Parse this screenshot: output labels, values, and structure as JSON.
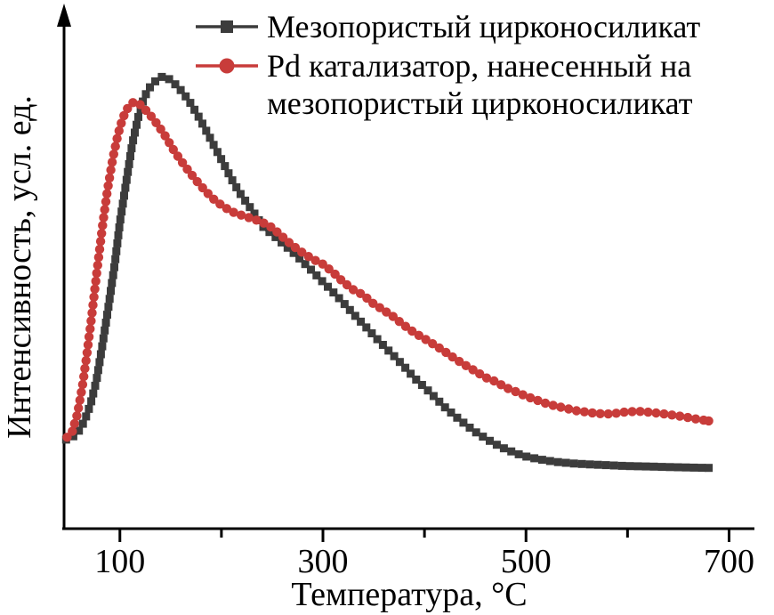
{
  "figure": {
    "background": "#ffffff",
    "axis_color": "#000000"
  },
  "chart_data": {
    "type": "line",
    "title": "",
    "xlabel": "Температура, °C",
    "ylabel": "Интенсивность, усл. ед.",
    "xlim": [
      45,
      725
    ],
    "ylim": [
      0,
      1.13
    ],
    "grid": false,
    "legend_position": "top",
    "x_ticks_major": [
      100,
      300,
      500,
      700
    ],
    "x_ticks_minor": [
      200,
      400,
      600
    ],
    "series": [
      {
        "name": "Мезопористый цирконосиликат",
        "color": "#3c3c3c",
        "marker": "square",
        "points": [
          [
            47,
            0.195
          ],
          [
            53,
            0.2
          ],
          [
            59,
            0.212
          ],
          [
            65,
            0.235
          ],
          [
            71,
            0.272
          ],
          [
            77,
            0.325
          ],
          [
            83,
            0.405
          ],
          [
            89,
            0.49
          ],
          [
            95,
            0.58
          ],
          [
            100,
            0.67
          ],
          [
            106,
            0.755
          ],
          [
            112,
            0.84
          ],
          [
            118,
            0.9
          ],
          [
            124,
            0.945
          ],
          [
            130,
            0.968
          ],
          [
            136,
            0.982
          ],
          [
            142,
            0.99
          ],
          [
            148,
            0.985
          ],
          [
            155,
            0.972
          ],
          [
            162,
            0.955
          ],
          [
            170,
            0.93
          ],
          [
            178,
            0.9
          ],
          [
            186,
            0.867
          ],
          [
            194,
            0.833
          ],
          [
            202,
            0.8
          ],
          [
            210,
            0.765
          ],
          [
            218,
            0.735
          ],
          [
            226,
            0.71
          ],
          [
            234,
            0.685
          ],
          [
            242,
            0.658
          ],
          [
            250,
            0.645
          ],
          [
            260,
            0.625
          ],
          [
            270,
            0.606
          ],
          [
            280,
            0.585
          ],
          [
            290,
            0.563
          ],
          [
            300,
            0.54
          ],
          [
            310,
            0.518
          ],
          [
            320,
            0.495
          ],
          [
            330,
            0.47
          ],
          [
            340,
            0.447
          ],
          [
            350,
            0.423
          ],
          [
            360,
            0.4
          ],
          [
            370,
            0.378
          ],
          [
            380,
            0.355
          ],
          [
            390,
            0.33
          ],
          [
            400,
            0.31
          ],
          [
            410,
            0.288
          ],
          [
            420,
            0.266
          ],
          [
            430,
            0.247
          ],
          [
            440,
            0.229
          ],
          [
            450,
            0.212
          ],
          [
            460,
            0.198
          ],
          [
            470,
            0.185
          ],
          [
            480,
            0.174
          ],
          [
            490,
            0.165
          ],
          [
            500,
            0.158
          ],
          [
            515,
            0.151
          ],
          [
            530,
            0.146
          ],
          [
            545,
            0.143
          ],
          [
            560,
            0.141
          ],
          [
            580,
            0.139
          ],
          [
            600,
            0.137
          ],
          [
            620,
            0.136
          ],
          [
            640,
            0.135
          ],
          [
            660,
            0.134
          ],
          [
            680,
            0.133
          ]
        ]
      },
      {
        "name": "Pd катализатор, нанесенный на мезопористый цирконосиликат",
        "color": "#c83c3a",
        "marker": "circle",
        "points": [
          [
            48,
            0.2
          ],
          [
            53,
            0.212
          ],
          [
            58,
            0.25
          ],
          [
            63,
            0.31
          ],
          [
            68,
            0.39
          ],
          [
            73,
            0.48
          ],
          [
            78,
            0.575
          ],
          [
            83,
            0.665
          ],
          [
            88,
            0.745
          ],
          [
            93,
            0.81
          ],
          [
            98,
            0.862
          ],
          [
            103,
            0.9
          ],
          [
            108,
            0.922
          ],
          [
            113,
            0.933
          ],
          [
            118,
            0.932
          ],
          [
            124,
            0.92
          ],
          [
            130,
            0.905
          ],
          [
            137,
            0.885
          ],
          [
            144,
            0.862
          ],
          [
            152,
            0.832
          ],
          [
            160,
            0.806
          ],
          [
            168,
            0.782
          ],
          [
            176,
            0.76
          ],
          [
            184,
            0.74
          ],
          [
            192,
            0.722
          ],
          [
            200,
            0.708
          ],
          [
            210,
            0.694
          ],
          [
            220,
            0.686
          ],
          [
            230,
            0.679
          ],
          [
            240,
            0.671
          ],
          [
            250,
            0.659
          ],
          [
            260,
            0.639
          ],
          [
            270,
            0.62
          ],
          [
            280,
            0.604
          ],
          [
            290,
            0.59
          ],
          [
            300,
            0.579
          ],
          [
            310,
            0.561
          ],
          [
            320,
            0.54
          ],
          [
            330,
            0.523
          ],
          [
            340,
            0.511
          ],
          [
            350,
            0.492
          ],
          [
            360,
            0.478
          ],
          [
            370,
            0.463
          ],
          [
            380,
            0.445
          ],
          [
            390,
            0.429
          ],
          [
            400,
            0.416
          ],
          [
            410,
            0.402
          ],
          [
            420,
            0.388
          ],
          [
            430,
            0.372
          ],
          [
            440,
            0.358
          ],
          [
            450,
            0.345
          ],
          [
            460,
            0.331
          ],
          [
            470,
            0.322
          ],
          [
            480,
            0.309
          ],
          [
            490,
            0.3
          ],
          [
            500,
            0.29
          ],
          [
            510,
            0.282
          ],
          [
            520,
            0.274
          ],
          [
            530,
            0.268
          ],
          [
            540,
            0.263
          ],
          [
            550,
            0.258
          ],
          [
            560,
            0.255
          ],
          [
            570,
            0.252
          ],
          [
            580,
            0.251
          ],
          [
            590,
            0.253
          ],
          [
            600,
            0.256
          ],
          [
            610,
            0.257
          ],
          [
            620,
            0.255
          ],
          [
            630,
            0.253
          ],
          [
            640,
            0.25
          ],
          [
            650,
            0.247
          ],
          [
            660,
            0.243
          ],
          [
            670,
            0.239
          ],
          [
            680,
            0.236
          ]
        ]
      }
    ]
  },
  "legend": {
    "items": [
      {
        "label_lines": [
          "Мезопористый цирконосиликат"
        ]
      },
      {
        "label_lines": [
          "Pd катализатор, нанесенный на",
          "мезопористый цирконосиликат"
        ]
      }
    ]
  }
}
